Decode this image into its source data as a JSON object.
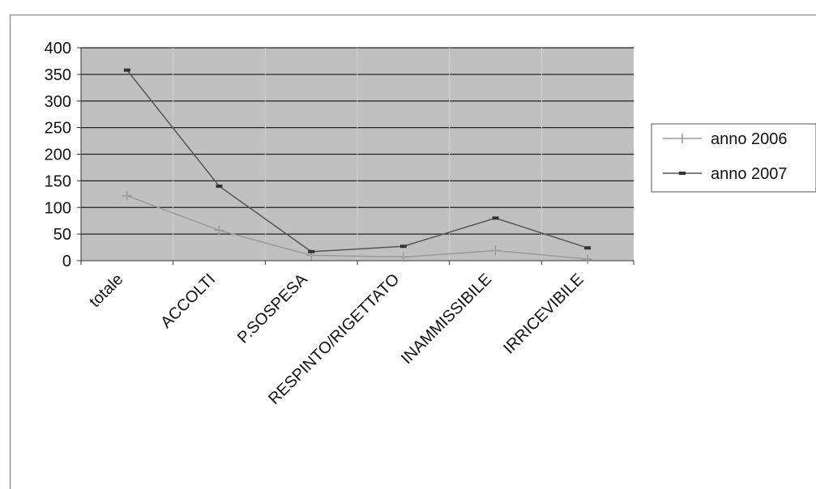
{
  "chart_data": {
    "type": "line",
    "categories": [
      "totale",
      "ACCOLTI",
      "P.SOSPESA",
      "RESPINTO/RIGETTATO",
      "INAMMISSIBILE",
      "IRRICEVIBILE"
    ],
    "series": [
      {
        "name": "anno 2006",
        "values": [
          122,
          57,
          10,
          7,
          19,
          3
        ],
        "color": "#9a9a9a",
        "marker": "plus"
      },
      {
        "name": "anno 2007",
        "values": [
          358,
          140,
          17,
          27,
          80,
          24
        ],
        "color": "#555555",
        "marker": "dash"
      }
    ],
    "ylim": [
      0,
      400
    ],
    "yticks": [
      0,
      50,
      100,
      150,
      200,
      250,
      300,
      350,
      400
    ],
    "grid": true,
    "plot_background": "#c0c0c0",
    "legend_position": "right"
  }
}
